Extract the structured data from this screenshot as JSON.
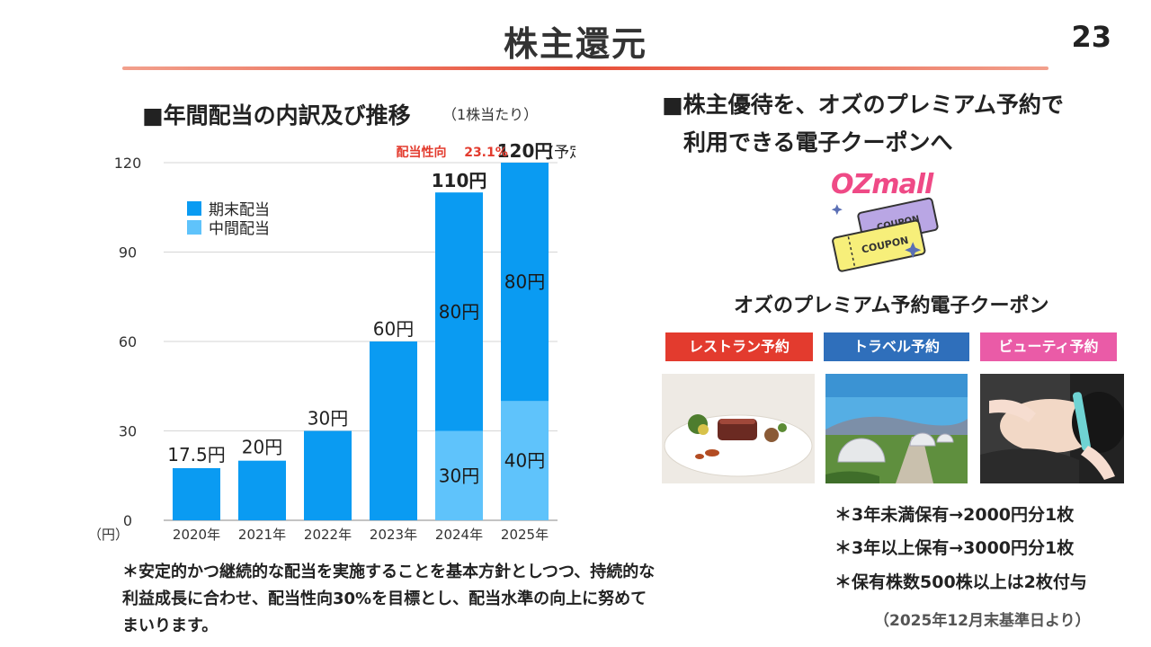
{
  "slide": {
    "title": "株主還元",
    "page_number": "23"
  },
  "left": {
    "heading": "■年間配当の内訳及び推移",
    "heading_note": "（1株当たり）",
    "unit": "（円）",
    "footnote": "＊安定的かつ継続的な配当を実施することを基本方針としつつ、持続的な利益成長に合わせ、配当性向30%を目標とし、配当水準の向上に努めてまいります。"
  },
  "chart_data": {
    "type": "bar",
    "stacked": true,
    "categories": [
      "2020年",
      "2021年",
      "2022年",
      "2023年",
      "2024年",
      "2025年"
    ],
    "series": [
      {
        "name": "中間配当",
        "values": [
          0,
          0,
          0,
          0,
          30,
          40
        ],
        "color": "#5fc3fb"
      },
      {
        "name": "期末配当",
        "values": [
          17.5,
          20,
          30,
          60,
          80,
          80
        ],
        "color": "#0a9bf2"
      }
    ],
    "totals": [
      17.5,
      20,
      30,
      60,
      110,
      120
    ],
    "total_labels": [
      "17.5円",
      "20円",
      "30円",
      "60円",
      "110円",
      "120円"
    ],
    "segment_labels": {
      "interim": [
        "",
        "",
        "",
        "",
        "30円",
        "40円"
      ],
      "final": [
        "",
        "",
        "",
        "",
        "80円",
        "80円"
      ]
    },
    "forecast_suffix": "(予定)",
    "payout_annotation": {
      "label": "配当性向",
      "value": "23.1%",
      "color": "#e33b2e"
    },
    "y_ticks": [
      0,
      30,
      60,
      90,
      120
    ],
    "ylim": [
      0,
      120
    ],
    "grid": true,
    "legend": {
      "position": "top-left",
      "entries": [
        "期末配当",
        "中間配当"
      ]
    }
  },
  "right": {
    "heading_line1": "■株主優待を、オズのプレミアム予約で",
    "heading_line2": "利用できる電子クーポンへ",
    "logo_text": "OZmall",
    "coupon_text": "COUPON",
    "coupon_title": "オズのプレミアム予約電子クーポン",
    "categories": [
      "レストラン予約",
      "トラベル予約",
      "ビューティ予約"
    ],
    "conditions": [
      "＊3年未満保有→2000円分1枚",
      "＊3年以上保有→3000円分1枚",
      "＊保有株数500株以上は2枚付与"
    ],
    "base_date_note": "（2025年12月末基準日より）"
  },
  "colors": {
    "accent": "#e8503a",
    "bar_final": "#0a9bf2",
    "bar_interim": "#5fc3fb",
    "restaurant": "#e33b2e",
    "travel": "#2f6fbb",
    "beauty": "#ea5ba7",
    "logo": "#ef4a86"
  }
}
